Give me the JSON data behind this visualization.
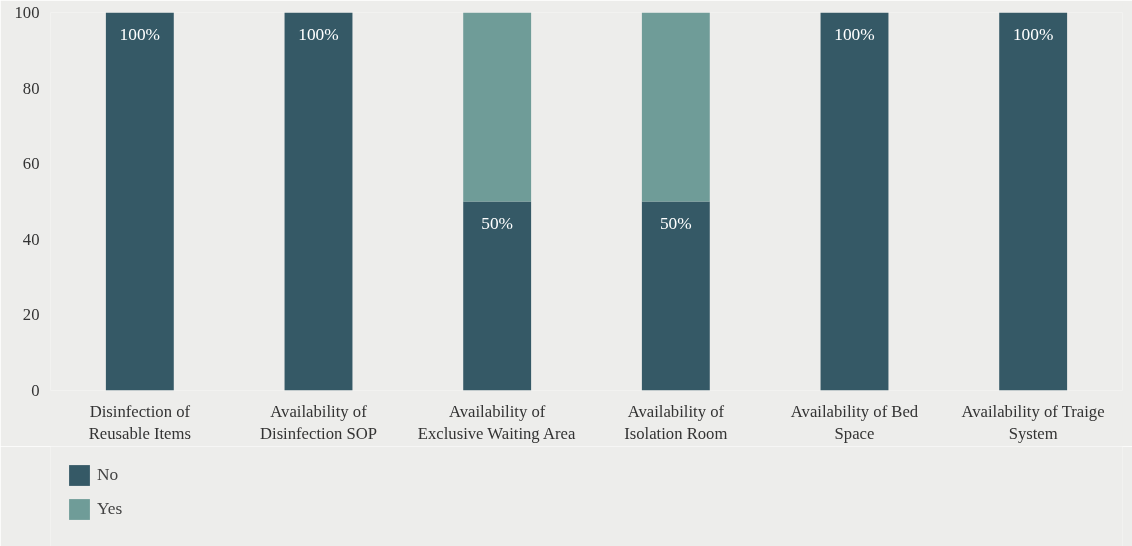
{
  "chart_data": {
    "type": "bar",
    "stacked": true,
    "categories": [
      "Disinfection of Reusable Items",
      "Availability of Disinfection SOP",
      "Availability of Exclusive Waiting Area",
      "Availability of Isolation Room",
      "Availability of Bed Space",
      "Availability of Traige System"
    ],
    "series": [
      {
        "name": "No",
        "color": "#355966",
        "values": [
          100,
          100,
          50,
          50,
          100,
          100
        ],
        "value_labels": [
          "100%",
          "100%",
          "50%",
          "50%",
          "100%",
          "100%"
        ]
      },
      {
        "name": "Yes",
        "color": "#6f9c98",
        "values": [
          0,
          0,
          50,
          50,
          0,
          0
        ]
      }
    ],
    "ylim": [
      0,
      100
    ],
    "yticks": [
      0,
      20,
      40,
      60,
      80,
      100
    ],
    "grid": false,
    "legend": "bottom left"
  }
}
